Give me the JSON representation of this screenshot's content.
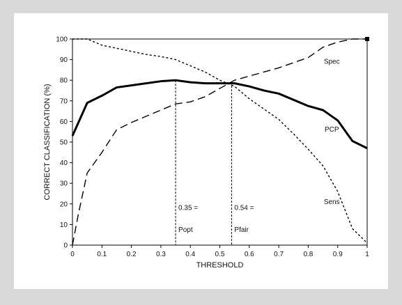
{
  "chart_data": {
    "type": "line",
    "title": "",
    "xlabel": "THRESHOLD",
    "ylabel": "CORRECT CLASSIFICATION (%)",
    "xlim": [
      0,
      1
    ],
    "ylim": [
      0,
      100
    ],
    "xticks": [
      0,
      0.1,
      0.2,
      0.3,
      0.4,
      0.5,
      0.6,
      0.7,
      0.8,
      0.9,
      1
    ],
    "xtick_labels": [
      "0",
      "0.1",
      "0.2",
      "0.3",
      "0.4",
      "0.5",
      "0.6",
      "0.7",
      "0.8",
      "0.9",
      "1"
    ],
    "yticks": [
      0,
      10,
      20,
      30,
      40,
      50,
      60,
      70,
      80,
      90,
      100
    ],
    "ytick_labels": [
      "0",
      "10",
      "20",
      "30",
      "40",
      "50",
      "60",
      "70",
      "80",
      "90",
      "100"
    ],
    "grid": false,
    "legend": "none (series labeled inline)",
    "series": [
      {
        "name": "PCP",
        "style": "solid-thick",
        "color": "#000000",
        "x": [
          0,
          0.05,
          0.1,
          0.15,
          0.2,
          0.25,
          0.3,
          0.35,
          0.4,
          0.45,
          0.5,
          0.55,
          0.6,
          0.65,
          0.7,
          0.75,
          0.8,
          0.85,
          0.9,
          0.95,
          1
        ],
        "y": [
          53,
          69,
          72.5,
          76.5,
          77.5,
          78.5,
          79.5,
          80,
          79,
          78.5,
          78.5,
          78.5,
          77,
          75,
          73.5,
          70.5,
          67.5,
          65.5,
          60.5,
          50.5,
          47
        ]
      },
      {
        "name": "Spec",
        "style": "dashed-long",
        "color": "#000000",
        "x": [
          0,
          0.02,
          0.05,
          0.1,
          0.15,
          0.2,
          0.25,
          0.3,
          0.35,
          0.4,
          0.45,
          0.5,
          0.55,
          0.6,
          0.65,
          0.7,
          0.75,
          0.8,
          0.85,
          0.9,
          0.95,
          1
        ],
        "y": [
          0,
          15,
          35,
          45,
          56,
          59.5,
          62.5,
          65.5,
          68.5,
          69.5,
          72,
          76,
          80,
          82,
          84,
          86,
          88.5,
          91,
          96,
          98.5,
          100,
          100
        ]
      },
      {
        "name": "Sens",
        "style": "dashed-short",
        "color": "#000000",
        "x": [
          0,
          0.05,
          0.1,
          0.15,
          0.2,
          0.25,
          0.3,
          0.35,
          0.4,
          0.45,
          0.5,
          0.55,
          0.6,
          0.65,
          0.7,
          0.75,
          0.8,
          0.85,
          0.9,
          0.95,
          1
        ],
        "y": [
          100,
          100,
          97,
          95.5,
          94,
          92.5,
          91.5,
          90,
          87,
          84,
          80,
          77,
          71,
          66,
          61,
          54,
          46.5,
          38.5,
          26,
          8,
          1
        ]
      }
    ],
    "series_labels": [
      {
        "text": "Spec",
        "x": 0.88,
        "y": 88
      },
      {
        "text": "PCP",
        "x": 0.88,
        "y": 55
      },
      {
        "text": "Sens",
        "x": 0.88,
        "y": 20
      }
    ],
    "vlines": [
      {
        "x": 0.35,
        "ytop": 80,
        "label_line1": "0.35 =",
        "label_line2": "Popt"
      },
      {
        "x": 0.54,
        "ytop": 79,
        "label_line1": "0.54 =",
        "label_line2": "Pfair"
      }
    ],
    "series_end_marker": {
      "x": 1,
      "y": 100
    }
  }
}
